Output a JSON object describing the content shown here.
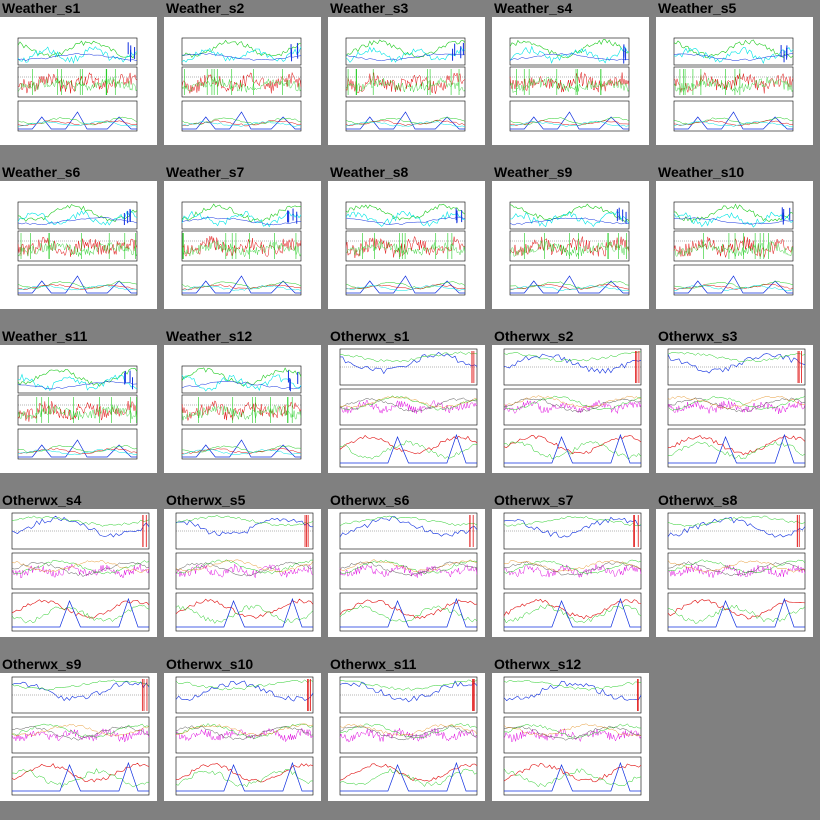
{
  "gallery": {
    "tiles": [
      {
        "title": "Weather_s1",
        "kind": "weather"
      },
      {
        "title": "Weather_s2",
        "kind": "weather"
      },
      {
        "title": "Weather_s3",
        "kind": "weather"
      },
      {
        "title": "Weather_s4",
        "kind": "weather"
      },
      {
        "title": "Weather_s5",
        "kind": "weather"
      },
      {
        "title": "Weather_s6",
        "kind": "weather"
      },
      {
        "title": "Weather_s7",
        "kind": "weather"
      },
      {
        "title": "Weather_s8",
        "kind": "weather"
      },
      {
        "title": "Weather_s9",
        "kind": "weather"
      },
      {
        "title": "Weather_s10",
        "kind": "weather"
      },
      {
        "title": "Weather_s11",
        "kind": "weather"
      },
      {
        "title": "Weather_s12",
        "kind": "weather"
      },
      {
        "title": "Otherwx_s1",
        "kind": "otherwx"
      },
      {
        "title": "Otherwx_s2",
        "kind": "otherwx"
      },
      {
        "title": "Otherwx_s3",
        "kind": "otherwx"
      },
      {
        "title": "Otherwx_s4",
        "kind": "otherwx"
      },
      {
        "title": "Otherwx_s5",
        "kind": "otherwx"
      },
      {
        "title": "Otherwx_s6",
        "kind": "otherwx"
      },
      {
        "title": "Otherwx_s7",
        "kind": "otherwx"
      },
      {
        "title": "Otherwx_s8",
        "kind": "otherwx"
      },
      {
        "title": "Otherwx_s9",
        "kind": "otherwx"
      },
      {
        "title": "Otherwx_s10",
        "kind": "otherwx"
      },
      {
        "title": "Otherwx_s11",
        "kind": "otherwx"
      },
      {
        "title": "Otherwx_s12",
        "kind": "otherwx"
      }
    ]
  },
  "colors": {
    "background": "#808080",
    "panel": "#ffffff",
    "series_cyan": "#00e5e5",
    "series_green": "#22cc22",
    "series_red": "#e01010",
    "series_blue": "#1030e0",
    "series_magenta": "#e010e0",
    "series_orange": "#e08000"
  }
}
